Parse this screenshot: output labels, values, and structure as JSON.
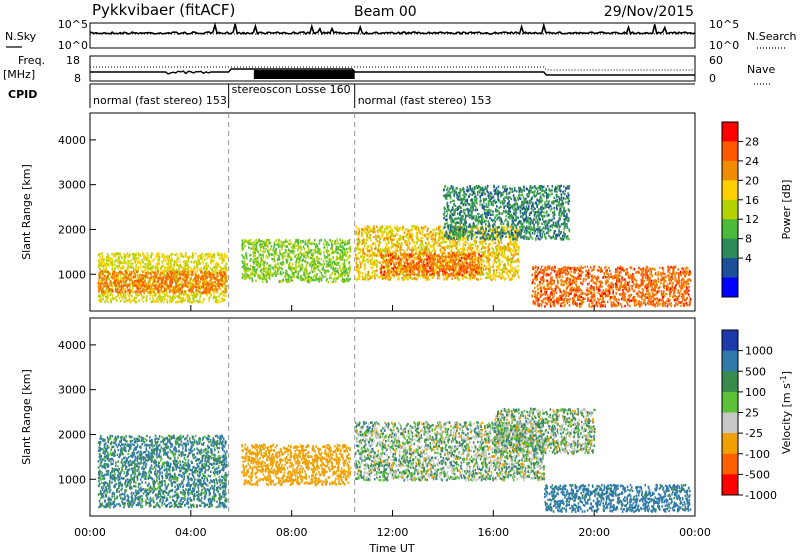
{
  "header": {
    "title": "Pykkvibaer (fitACF)",
    "beam": "Beam 00",
    "date": "29/Nov/2015"
  },
  "nsky_panel": {
    "label": "N.Sky",
    "right_label": "N.Search",
    "left_ticks": [
      "10^5",
      "10^0"
    ],
    "right_ticks": [
      "10^5",
      "10^0"
    ]
  },
  "freq_panel": {
    "label_line1": "Freq.",
    "label_line2": "[MHz]",
    "right_label": "Nave",
    "left_ticks": [
      "18",
      "8"
    ],
    "right_ticks": [
      "60",
      "0"
    ]
  },
  "cpid": {
    "label": "CPID",
    "segments": [
      {
        "text": "normal (fast stereo) 153",
        "start_hour": 0.0,
        "end_hour": 5.5
      },
      {
        "text": "stereoscon Losse 160",
        "start_hour": 5.5,
        "end_hour": 10.5
      },
      {
        "text": "normal (fast stereo) 153",
        "start_hour": 10.5,
        "end_hour": 24.0
      }
    ]
  },
  "power_legend": {
    "title": "Power [dB]",
    "ticks": [
      "28",
      "24",
      "20",
      "16",
      "12",
      "8",
      "4"
    ],
    "colors": [
      "#ff0000",
      "#ff5a00",
      "#f08c00",
      "#ffd000",
      "#b4d200",
      "#4dbb3a",
      "#2e8a5a",
      "#1d4f9a",
      "#0000ff"
    ]
  },
  "velocity_legend": {
    "title": "Velocity [m s",
    "title_superscript": "-1",
    "title_close": "]",
    "ticks": [
      "1000",
      "500",
      "100",
      "25",
      "-25",
      "-100",
      "-500",
      "-1000"
    ],
    "colors": [
      "#1c3aa8",
      "#2f7aa6",
      "#3a8a4e",
      "#5cc23a",
      "#c8c8c8",
      "#f0a000",
      "#ff6000",
      "#ff0000"
    ]
  },
  "chart_data": [
    {
      "type": "heatmap",
      "name_of_quantity": "Power",
      "ylabel": "Slant Range [km]",
      "xlabel": "",
      "x_ticks": [
        "00:00",
        "04:00",
        "08:00",
        "12:00",
        "16:00",
        "20:00",
        "00:00"
      ],
      "xlim_hours": [
        0,
        24
      ],
      "y_ticks": [
        1000,
        2000,
        3000,
        4000
      ],
      "ylim": [
        180,
        4600
      ],
      "scatter_regions": [
        {
          "t0": 0.3,
          "t1": 5.4,
          "r0": 400,
          "r1": 1500,
          "value": 18
        },
        {
          "t0": 0.3,
          "t1": 5.4,
          "r0": 600,
          "r1": 1100,
          "value": 26
        },
        {
          "t0": 6.0,
          "t1": 10.3,
          "r0": 850,
          "r1": 1800,
          "value": 14
        },
        {
          "t0": 10.5,
          "t1": 17.0,
          "r0": 900,
          "r1": 2100,
          "value": 20
        },
        {
          "t0": 11.5,
          "t1": 15.5,
          "r0": 1000,
          "r1": 1500,
          "value": 27
        },
        {
          "t0": 17.5,
          "t1": 23.8,
          "r0": 300,
          "r1": 1200,
          "value": 27
        },
        {
          "t0": 14.0,
          "t1": 19.0,
          "r0": 1800,
          "r1": 3000,
          "value": 8
        }
      ]
    },
    {
      "type": "heatmap",
      "name_of_quantity": "Velocity",
      "ylabel": "Slant Range [km]",
      "xlabel": "Time UT",
      "x_ticks": [
        "00:00",
        "04:00",
        "08:00",
        "12:00",
        "16:00",
        "20:00",
        "00:00"
      ],
      "xlim_hours": [
        0,
        24
      ],
      "y_ticks": [
        1000,
        2000,
        3000,
        4000
      ],
      "ylim": [
        180,
        4600
      ],
      "scatter_regions": [
        {
          "t0": 0.3,
          "t1": 5.4,
          "r0": 400,
          "r1": 2000,
          "value": 120
        },
        {
          "t0": 6.0,
          "t1": 10.3,
          "r0": 900,
          "r1": 1800,
          "value": -300
        },
        {
          "t0": 10.5,
          "t1": 18.0,
          "r0": 1000,
          "r1": 2300,
          "value": 0
        },
        {
          "t0": 16.0,
          "t1": 20.0,
          "r0": 1600,
          "r1": 2600,
          "value": 0
        },
        {
          "t0": 18.0,
          "t1": 23.8,
          "r0": 300,
          "r1": 900,
          "value": 200
        }
      ]
    }
  ]
}
